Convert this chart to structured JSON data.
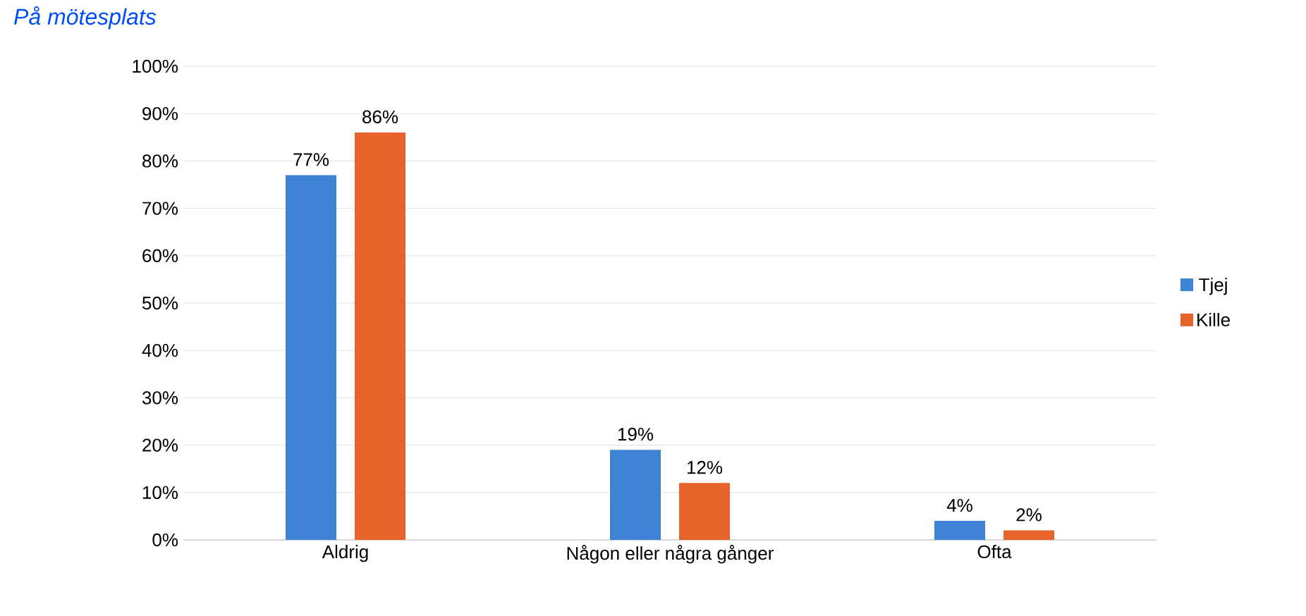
{
  "chart_data": {
    "type": "bar",
    "title": "På mötesplats",
    "categories": [
      "Aldrig",
      "Någon eller några gånger",
      "Ofta"
    ],
    "series": [
      {
        "name": "Tjej",
        "color": "#3e83d6",
        "values": [
          77,
          19,
          4
        ],
        "value_labels": [
          "77%",
          "19%",
          "4%"
        ]
      },
      {
        "name": "Kille",
        "color": "#e8622c",
        "values": [
          86,
          12,
          2
        ],
        "value_labels": [
          "86%",
          "12%",
          "2%"
        ]
      }
    ],
    "ylim": [
      0,
      100
    ],
    "yticks": [
      {
        "value": 0,
        "label": "0%"
      },
      {
        "value": 10,
        "label": "10%"
      },
      {
        "value": 20,
        "label": "20%"
      },
      {
        "value": 30,
        "label": "30%"
      },
      {
        "value": 40,
        "label": "40%"
      },
      {
        "value": 50,
        "label": "50%"
      },
      {
        "value": 60,
        "label": "60%"
      },
      {
        "value": 70,
        "label": "70%"
      },
      {
        "value": 80,
        "label": "80%"
      },
      {
        "value": 90,
        "label": "90%"
      },
      {
        "value": 100,
        "label": "100%"
      }
    ],
    "grid": "y",
    "legend": "right"
  }
}
